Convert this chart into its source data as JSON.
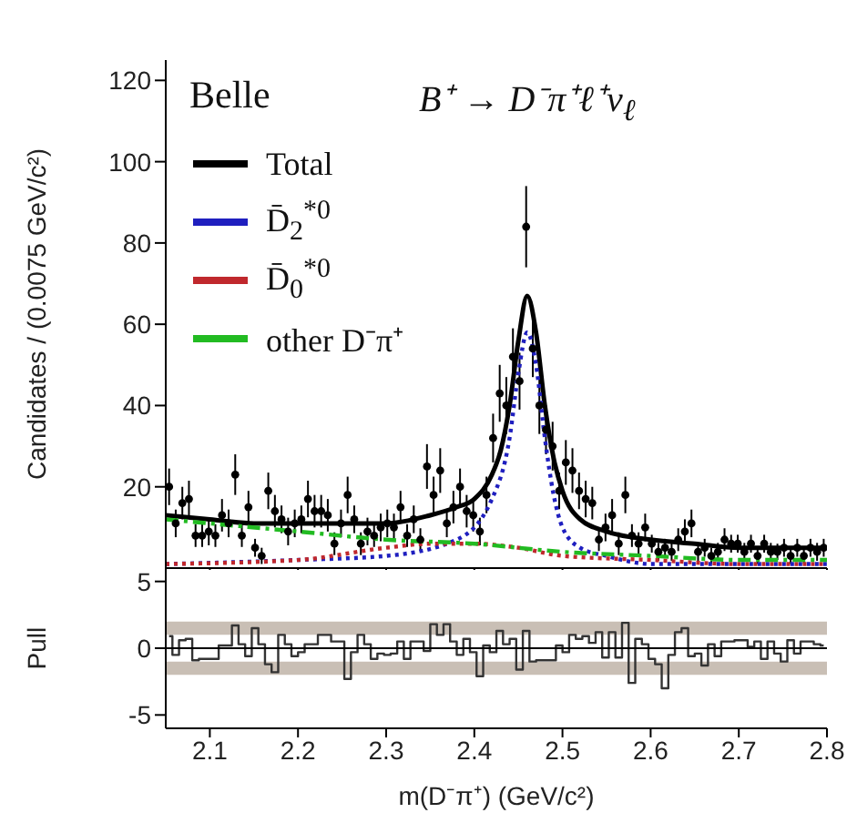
{
  "chart_data": [
    {
      "type": "scatter",
      "title": "B⁺ → D⁻π⁺ℓ⁺ν$_{ℓ}$",
      "ylabel": "Candidates / (0.0075 GeV/c²)",
      "annotations": [
        "Belle"
      ],
      "xlim": [
        2.05,
        2.8
      ],
      "xticks": [
        2.1,
        2.2,
        2.3,
        2.4,
        2.5,
        2.6,
        2.7,
        2.8
      ],
      "ylim": [
        0,
        125
      ],
      "yticks": [
        20,
        40,
        60,
        80,
        100,
        120
      ],
      "tick_labels": "y",
      "legend": "top left",
      "x": [
        2.0538,
        2.0613,
        2.0688,
        2.0763,
        2.0838,
        2.0913,
        2.0988,
        2.1063,
        2.1138,
        2.1213,
        2.1288,
        2.1363,
        2.1438,
        2.1513,
        2.1588,
        2.1663,
        2.1738,
        2.1813,
        2.1888,
        2.1963,
        2.2038,
        2.2113,
        2.2188,
        2.2263,
        2.2338,
        2.2413,
        2.2488,
        2.2563,
        2.2638,
        2.2713,
        2.2788,
        2.2863,
        2.2938,
        2.3013,
        2.3088,
        2.3163,
        2.3238,
        2.3313,
        2.3388,
        2.3463,
        2.3538,
        2.3613,
        2.3688,
        2.3763,
        2.3838,
        2.3913,
        2.3988,
        2.4063,
        2.4138,
        2.4213,
        2.4288,
        2.4363,
        2.4438,
        2.4513,
        2.4588,
        2.4663,
        2.4738,
        2.4813,
        2.4888,
        2.4963,
        2.5038,
        2.5113,
        2.5188,
        2.5263,
        2.5338,
        2.5413,
        2.5488,
        2.5563,
        2.5638,
        2.5713,
        2.5788,
        2.5863,
        2.5938,
        2.6013,
        2.6088,
        2.6163,
        2.6238,
        2.6313,
        2.6388,
        2.6463,
        2.6538,
        2.6613,
        2.6688,
        2.6763,
        2.6838,
        2.6913,
        2.6988,
        2.7063,
        2.7138,
        2.7213,
        2.7288,
        2.7363,
        2.7438,
        2.7513,
        2.7588,
        2.7663,
        2.7738,
        2.7813,
        2.7888,
        2.7963
      ],
      "series": [
        {
          "color": "#000000",
          "marker": "circle",
          "values": [
            20,
            11,
            16,
            17,
            8,
            8,
            9,
            8,
            13,
            11,
            23,
            8,
            15,
            5,
            3,
            19,
            14,
            12,
            9,
            11,
            12,
            17,
            14,
            14,
            13,
            6,
            11,
            18,
            12,
            6,
            9,
            8,
            10,
            11,
            10,
            15,
            8,
            12,
            7,
            25,
            18,
            24,
            11,
            15,
            20,
            14,
            13,
            9,
            18,
            32,
            43,
            40,
            52,
            46,
            84,
            54,
            40,
            34,
            30,
            19,
            26,
            24,
            19,
            17,
            16,
            7,
            10,
            13,
            6,
            18,
            8,
            6,
            10,
            6,
            4,
            5,
            4,
            7,
            9,
            11,
            4,
            5,
            3,
            4,
            7,
            6,
            6,
            4,
            6,
            3,
            6,
            4,
            4,
            5,
            3,
            5,
            3,
            5,
            4,
            5
          ],
          "errors": [
            4.5,
            3.4,
            4,
            4.5,
            2.8,
            2.8,
            3.4,
            2.8,
            4,
            3.4,
            5,
            2.8,
            4,
            2.2,
            2,
            4.5,
            4,
            3.4,
            3.4,
            3.4,
            3.4,
            4.5,
            4,
            4,
            4,
            2.8,
            3.4,
            4.5,
            3.4,
            2.8,
            3.4,
            2.8,
            3.4,
            3.4,
            3.4,
            4,
            2.8,
            3.4,
            2.8,
            5.5,
            4.5,
            5.5,
            3.4,
            4,
            4.5,
            4,
            4,
            3.4,
            4.5,
            6,
            7,
            7,
            7,
            7,
            10,
            7,
            7,
            6,
            6,
            4.5,
            5.5,
            5.5,
            4.5,
            4.5,
            4,
            2.8,
            3.4,
            4,
            2.8,
            4.5,
            2.8,
            2.8,
            3.4,
            2.2,
            2.2,
            2.2,
            2.2,
            2.8,
            3,
            3.4,
            2.2,
            2.2,
            2,
            2.2,
            2.8,
            2.2,
            2.2,
            2.2,
            2.2,
            2,
            2.2,
            2.2,
            2,
            2.2,
            2,
            2.2,
            2,
            2.2,
            2.2,
            2.2
          ]
        },
        {
          "type": "line",
          "name": "Total",
          "color": "#000000",
          "line_style": "solid",
          "marker": "none",
          "x": [
            2.05,
            2.1,
            2.15,
            2.2,
            2.25,
            2.3,
            2.35,
            2.38,
            2.4,
            2.42,
            2.43,
            2.44,
            2.45,
            2.46,
            2.47,
            2.48,
            2.49,
            2.5,
            2.52,
            2.55,
            2.6,
            2.65,
            2.7,
            2.8
          ],
          "values": [
            13,
            12,
            11,
            11,
            11,
            11,
            13,
            15,
            17,
            23,
            29,
            40,
            56,
            67,
            58,
            40,
            27,
            19,
            12,
            9,
            7,
            6,
            5,
            5
          ]
        },
        {
          "type": "line",
          "name": "D̄$_{2}$$^{*0}$",
          "color": "#1f1fbf",
          "line_style": "dotted",
          "marker": "none",
          "x": [
            2.05,
            2.2,
            2.3,
            2.38,
            2.42,
            2.44,
            2.45,
            2.46,
            2.47,
            2.48,
            2.49,
            2.5,
            2.52,
            2.55,
            2.6,
            2.7,
            2.8
          ],
          "values": [
            1,
            2,
            3,
            7,
            17,
            32,
            48,
            58,
            50,
            32,
            18,
            10,
            5,
            3,
            1,
            1,
            1
          ]
        },
        {
          "type": "line",
          "name": "D̄$_{0}$$^{*0}$",
          "color": "#c0282d",
          "line_style": "dotted",
          "marker": "none",
          "x": [
            2.05,
            2.2,
            2.3,
            2.35,
            2.4,
            2.45,
            2.5,
            2.6,
            2.7,
            2.8
          ],
          "values": [
            1,
            2,
            5,
            6,
            6,
            5,
            3,
            2,
            1,
            1
          ]
        },
        {
          "type": "line",
          "name": "other D⁻π⁺",
          "color": "#22bb22",
          "line_style": "dashed",
          "marker": "none",
          "x": [
            2.05,
            2.1,
            2.2,
            2.3,
            2.4,
            2.5,
            2.6,
            2.7,
            2.8
          ],
          "values": [
            12,
            11,
            9,
            7,
            6,
            4,
            3,
            2,
            2
          ]
        }
      ]
    },
    {
      "type": "step",
      "xlabel": "m(D⁻π⁺) (GeV/c²)",
      "ylabel": "Pull",
      "xlim": [
        2.05,
        2.8
      ],
      "xticks": [
        2.1,
        2.2,
        2.3,
        2.4,
        2.5,
        2.6,
        2.7,
        2.8
      ],
      "ylim": [
        -6,
        6
      ],
      "yticks": [
        -5,
        0,
        5
      ],
      "bands": [
        {
          "axis": "y",
          "from": 1,
          "to": 2,
          "color": "#c9bfb5"
        },
        {
          "axis": "y",
          "from": -2,
          "to": -1,
          "color": "#c9bfb5"
        }
      ],
      "ref_lines": [
        {
          "axis": "y",
          "value": 0,
          "color": "#000000"
        }
      ],
      "x": [
        2.0538,
        2.0613,
        2.0688,
        2.0763,
        2.0838,
        2.0913,
        2.0988,
        2.1063,
        2.1138,
        2.1213,
        2.1288,
        2.1363,
        2.1438,
        2.1513,
        2.1588,
        2.1663,
        2.1738,
        2.1813,
        2.1888,
        2.1963,
        2.2038,
        2.2113,
        2.2188,
        2.2263,
        2.2338,
        2.2413,
        2.2488,
        2.2563,
        2.2638,
        2.2713,
        2.2788,
        2.2863,
        2.2938,
        2.3013,
        2.3088,
        2.3163,
        2.3238,
        2.3313,
        2.3388,
        2.3463,
        2.3538,
        2.3613,
        2.3688,
        2.3763,
        2.3838,
        2.3913,
        2.3988,
        2.4063,
        2.4138,
        2.4213,
        2.4288,
        2.4363,
        2.4438,
        2.4513,
        2.4588,
        2.4663,
        2.4738,
        2.4813,
        2.4888,
        2.4963,
        2.5038,
        2.5113,
        2.5188,
        2.5263,
        2.5338,
        2.5413,
        2.5488,
        2.5563,
        2.5638,
        2.5713,
        2.5788,
        2.5863,
        2.5938,
        2.6013,
        2.6088,
        2.6163,
        2.6238,
        2.6313,
        2.6388,
        2.6463,
        2.6538,
        2.6613,
        2.6688,
        2.6763,
        2.6838,
        2.6913,
        2.6988,
        2.7063,
        2.7138,
        2.7213,
        2.7288,
        2.7363,
        2.7438,
        2.7513,
        2.7588,
        2.7663,
        2.7738,
        2.7813,
        2.7888,
        2.7963
      ],
      "series": [
        {
          "color": "#333333",
          "values": [
            0.9,
            -0.5,
            0.6,
            0.7,
            -0.9,
            -0.8,
            -0.8,
            -0.8,
            0.2,
            0.2,
            1.7,
            0.3,
            -0.6,
            1.5,
            0.3,
            -1.2,
            -1.8,
            1,
            0.3,
            -0.6,
            -0.3,
            0.3,
            0.3,
            1,
            1,
            0.5,
            0.5,
            -2.3,
            -0.3,
            1,
            0.3,
            -0.8,
            -0.4,
            -0.5,
            -0.4,
            0.5,
            -0.8,
            0.5,
            0.5,
            -0.2,
            1.8,
            1,
            1.8,
            0.5,
            -0.5,
            0.7,
            -0.3,
            -2.1,
            0.2,
            -0.3,
            1.3,
            0.3,
            0.7,
            -1.6,
            1.3,
            -1,
            -0.9,
            -0.9,
            -0.9,
            0.2,
            -0.3,
            1,
            0.7,
            0.9,
            0.4,
            1.2,
            -0.7,
            1.2,
            -0.7,
            1.9,
            -2.6,
            0.7,
            0.3,
            -0.8,
            -1.2,
            -3,
            -0.5,
            1.2,
            1.5,
            -0.6,
            -0.4,
            -1.3,
            0.3,
            -0.6,
            0.5,
            0.5,
            0.6,
            0.6,
            0.1,
            0.5,
            -0.8,
            0.5,
            -0.4,
            -1,
            0.6,
            -0.4,
            0.5,
            0.5,
            0.3,
            0.2
          ]
        }
      ]
    }
  ]
}
